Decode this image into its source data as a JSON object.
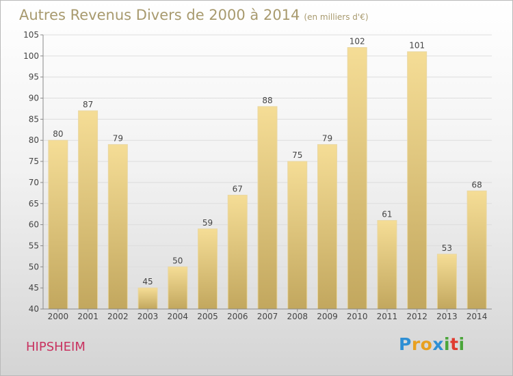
{
  "chart_data": {
    "type": "bar",
    "title": "Autres Revenus Divers de 2000 à 2014",
    "subtitle": "(en milliers d'€)",
    "categories": [
      "2000",
      "2001",
      "2002",
      "2003",
      "2004",
      "2005",
      "2006",
      "2007",
      "2008",
      "2009",
      "2010",
      "2011",
      "2012",
      "2013",
      "2014"
    ],
    "values": [
      80,
      87,
      79,
      45,
      50,
      59,
      67,
      88,
      75,
      79,
      102,
      61,
      101,
      53,
      68
    ],
    "ylim": [
      40,
      105
    ],
    "yticks": [
      40,
      45,
      50,
      55,
      60,
      65,
      70,
      75,
      80,
      85,
      90,
      95,
      100,
      105
    ],
    "grid": true,
    "colors": {
      "bar_top": "#f5dd96",
      "bar_bottom": "#c2a75e",
      "title": "#a89a6e",
      "label": "#444444"
    }
  },
  "commune": "HIPSHEIM",
  "logo": {
    "letters": [
      {
        "ch": "P",
        "color": "#2e8fd4"
      },
      {
        "ch": "r",
        "color": "#e8a020"
      },
      {
        "ch": "o",
        "color": "#e8a020"
      },
      {
        "ch": "x",
        "color": "#2e8fd4"
      },
      {
        "ch": "i",
        "color": "#4aa53a"
      },
      {
        "ch": "t",
        "color": "#e03a2f"
      },
      {
        "ch": "i",
        "color": "#4aa53a"
      }
    ]
  }
}
